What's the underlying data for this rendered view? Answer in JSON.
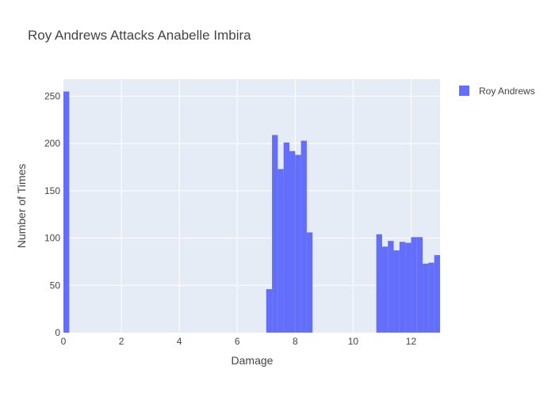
{
  "chart_data": {
    "type": "bar",
    "title": "Roy Andrews Attacks Anabelle Imbira",
    "xlabel": "Damage",
    "ylabel": "Number of Times",
    "xlim": [
      0,
      13
    ],
    "ylim": [
      0,
      268
    ],
    "xticks": [
      0,
      2,
      4,
      6,
      8,
      10,
      12
    ],
    "yticks": [
      0,
      50,
      100,
      150,
      200,
      250
    ],
    "grid": true,
    "legend_position": "top-right",
    "bin_width": 0.2,
    "series": [
      {
        "name": "Roy Andrews",
        "color": "#636efa",
        "bins": [
          {
            "x0": 0.0,
            "x1": 0.2,
            "y": 255
          },
          {
            "x0": 7.0,
            "x1": 7.2,
            "y": 46
          },
          {
            "x0": 7.2,
            "x1": 7.4,
            "y": 209
          },
          {
            "x0": 7.4,
            "x1": 7.6,
            "y": 173
          },
          {
            "x0": 7.6,
            "x1": 7.8,
            "y": 201
          },
          {
            "x0": 7.8,
            "x1": 8.0,
            "y": 192
          },
          {
            "x0": 8.0,
            "x1": 8.2,
            "y": 188
          },
          {
            "x0": 8.2,
            "x1": 8.4,
            "y": 203
          },
          {
            "x0": 8.4,
            "x1": 8.6,
            "y": 106
          },
          {
            "x0": 10.8,
            "x1": 11.0,
            "y": 104
          },
          {
            "x0": 11.0,
            "x1": 11.2,
            "y": 91
          },
          {
            "x0": 11.2,
            "x1": 11.4,
            "y": 97
          },
          {
            "x0": 11.4,
            "x1": 11.6,
            "y": 87
          },
          {
            "x0": 11.6,
            "x1": 11.8,
            "y": 96
          },
          {
            "x0": 11.8,
            "x1": 12.0,
            "y": 95
          },
          {
            "x0": 12.0,
            "x1": 12.2,
            "y": 101
          },
          {
            "x0": 12.2,
            "x1": 12.4,
            "y": 101
          },
          {
            "x0": 12.4,
            "x1": 12.6,
            "y": 73
          },
          {
            "x0": 12.6,
            "x1": 12.8,
            "y": 74
          },
          {
            "x0": 12.8,
            "x1": 13.0,
            "y": 82
          }
        ]
      }
    ]
  }
}
